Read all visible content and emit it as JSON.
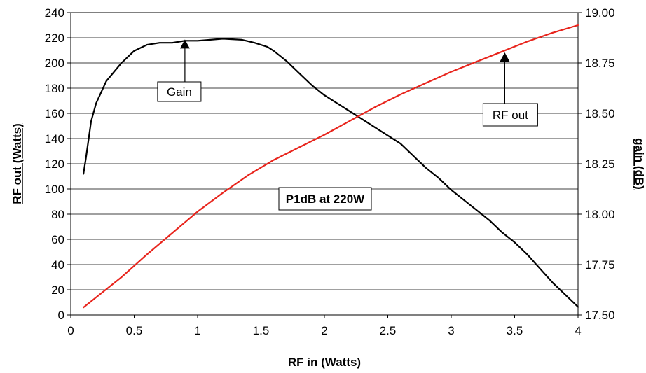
{
  "chart_data": {
    "type": "line",
    "title": "",
    "xlabel": "RF in (Watts)",
    "ylabel_left": "RF out (Watts)",
    "ylabel_right": "gain (dB)",
    "xlim": [
      0,
      4
    ],
    "ylim_left": [
      0,
      240
    ],
    "ylim_right": [
      17.5,
      19.0
    ],
    "grid": true,
    "x_ticks": [
      "0",
      "0.5",
      "1",
      "1.5",
      "2",
      "2.5",
      "3",
      "3.5",
      "4"
    ],
    "y_left_ticks": [
      "0",
      "20",
      "40",
      "60",
      "80",
      "100",
      "120",
      "140",
      "160",
      "180",
      "200",
      "220",
      "240"
    ],
    "y_right_ticks": [
      "17.50",
      "17.75",
      "18.00",
      "18.25",
      "18.50",
      "18.75",
      "19.00"
    ],
    "series": [
      {
        "name": "Gain",
        "axis": "right",
        "color": "#000000",
        "x": [
          0.1,
          0.12,
          0.16,
          0.2,
          0.28,
          0.4,
          0.5,
          0.6,
          0.7,
          0.8,
          0.9,
          1.0,
          1.1,
          1.2,
          1.35,
          1.45,
          1.55,
          1.6,
          1.7,
          1.8,
          1.9,
          2.0,
          2.1,
          2.2,
          2.3,
          2.4,
          2.5,
          2.6,
          2.7,
          2.8,
          2.9,
          3.0,
          3.1,
          3.2,
          3.3,
          3.4,
          3.5,
          3.6,
          3.7,
          3.8,
          3.9,
          4.0
        ],
        "y": [
          18.2,
          18.28,
          18.46,
          18.55,
          18.66,
          18.75,
          18.81,
          18.84,
          18.85,
          18.85,
          18.86,
          18.86,
          18.865,
          18.87,
          18.865,
          18.85,
          18.83,
          18.81,
          18.76,
          18.7,
          18.64,
          18.59,
          18.55,
          18.51,
          18.47,
          18.43,
          18.39,
          18.35,
          18.29,
          18.23,
          18.18,
          18.12,
          18.07,
          18.02,
          17.97,
          17.91,
          17.86,
          17.8,
          17.73,
          17.66,
          17.6,
          17.54
        ]
      },
      {
        "name": "RF out",
        "axis": "left",
        "color": "#e8251d",
        "x": [
          0.1,
          0.2,
          0.4,
          0.6,
          0.8,
          1.0,
          1.2,
          1.4,
          1.6,
          1.8,
          2.0,
          2.2,
          2.4,
          2.6,
          2.8,
          3.0,
          3.2,
          3.4,
          3.6,
          3.8,
          4.0
        ],
        "y": [
          6,
          14,
          30,
          48,
          65,
          82,
          97,
          111,
          123,
          133,
          143,
          154,
          165,
          175,
          184,
          193,
          201,
          209,
          217,
          224,
          230
        ]
      }
    ],
    "annotations": [
      {
        "text": "Gain",
        "target_series": "Gain",
        "x": 0.9,
        "y": 18.86
      },
      {
        "text": "RF out",
        "target_series": "RF out",
        "x": 3.4,
        "y": 205
      },
      {
        "text": "P1dB at 220W"
      }
    ]
  }
}
